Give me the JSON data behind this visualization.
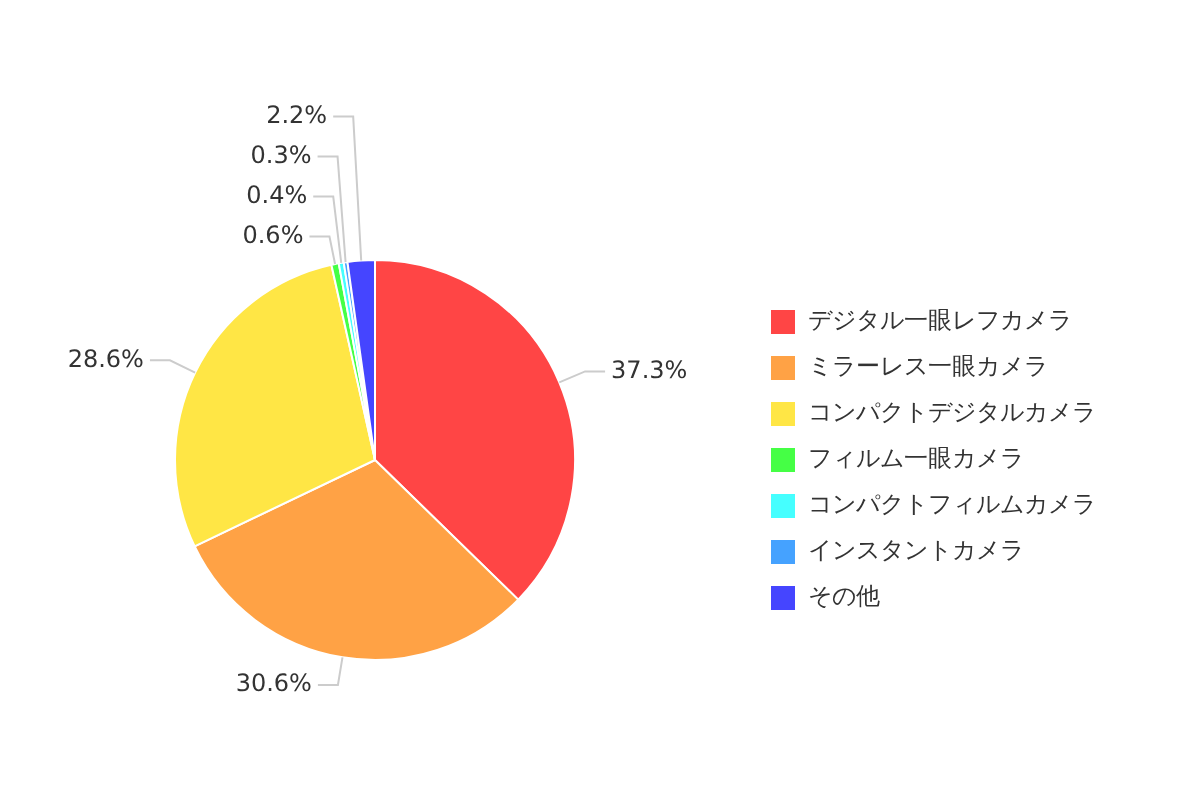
{
  "chart_data": {
    "type": "pie",
    "categories": [
      "デジタル一眼レフカメラ",
      "ミラーレス一眼カメラ",
      "コンパクトデジタルカメラ",
      "フィルム一眼カメラ",
      "コンパクトフィルムカメラ",
      "インスタントカメラ",
      "その他"
    ],
    "values": [
      37.3,
      30.6,
      28.6,
      0.6,
      0.4,
      0.3,
      2.2
    ],
    "value_labels": [
      "37.3%",
      "30.6%",
      "28.6%",
      "0.6%",
      "0.4%",
      "0.3%",
      "2.2%"
    ],
    "colors": [
      "#ff4545",
      "#ffa245",
      "#ffe645",
      "#45ff45",
      "#45ffff",
      "#45a2ff",
      "#4545ff"
    ],
    "legend": "right"
  }
}
